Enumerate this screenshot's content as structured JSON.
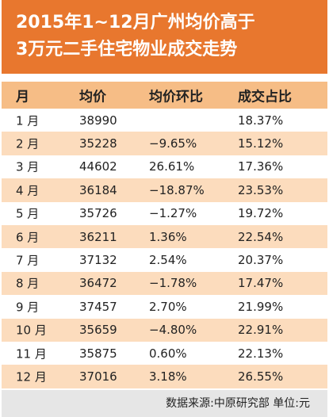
{
  "header": {
    "title_lines": [
      "2015年1~12月广州均价高于",
      "3万元二手住宅物业成交走势"
    ]
  },
  "table": {
    "columns": [
      "月",
      "均价",
      "均价环比",
      "成交占比"
    ],
    "rows": [
      [
        "1 月",
        "38990",
        null,
        "18.37%"
      ],
      [
        "2 月",
        "35228",
        "−9.65%",
        "15.12%"
      ],
      [
        "3 月",
        "44602",
        "26.61%",
        "17.36%"
      ],
      [
        "4 月",
        "36184",
        "−18.87%",
        "23.53%"
      ],
      [
        "5 月",
        "35726",
        "−1.27%",
        "19.72%"
      ],
      [
        "6 月",
        "36211",
        "1.36%",
        "22.54%"
      ],
      [
        "7 月",
        "37132",
        "2.54%",
        "20.37%"
      ],
      [
        "8 月",
        "36472",
        "−1.78%",
        "17.47%"
      ],
      [
        "9 月",
        "37457",
        "2.70%",
        "21.99%"
      ],
      [
        "10 月",
        "35659",
        "−4.80%",
        "22.91%"
      ],
      [
        "11 月",
        "35875",
        "0.60%",
        "22.13%"
      ],
      [
        "12 月",
        "37016",
        "3.18%",
        "26.55%"
      ]
    ]
  },
  "footer": {
    "source": "数据来源:中原研究部  单位:元"
  }
}
